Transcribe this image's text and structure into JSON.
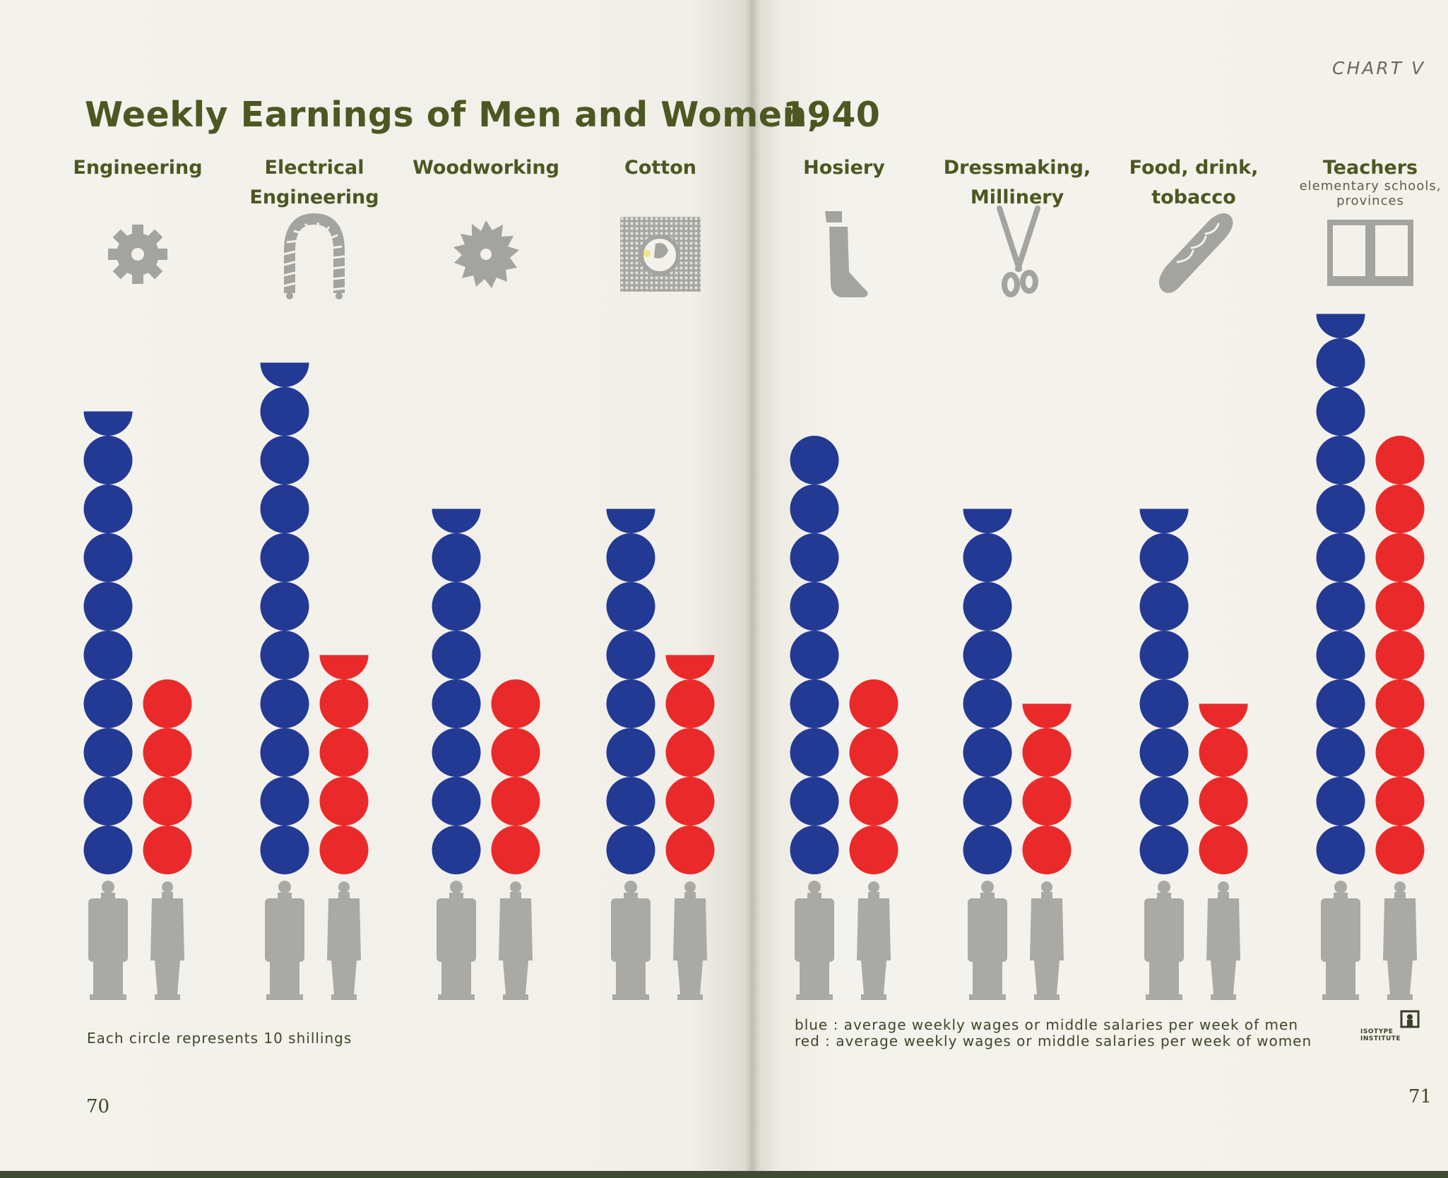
{
  "title_left": "Weekly Earnings of Men and Women,",
  "title_right": "1940",
  "chart_label": "CHART V",
  "chart_data": {
    "type": "bar",
    "title": "Weekly Earnings of Men and Women, 1940",
    "unit": "Each circle represents 10 shillings",
    "categories": [
      "Engineering",
      "Electrical Engineering",
      "Woodworking",
      "Cotton",
      "Hosiery",
      "Dressmaking, Millinery",
      "Food, drink, tobacco",
      "Teachers"
    ],
    "category_sub": [
      "",
      "",
      "",
      "",
      "",
      "",
      "",
      "elementary schools, provinces"
    ],
    "series": [
      {
        "color": "#233a94",
        "values": [
          9.5,
          10.5,
          7.5,
          7.5,
          9,
          7.5,
          7.5,
          11.5
        ]
      },
      {
        "color": "#ea2a2a",
        "values": [
          4,
          4.5,
          4,
          4.5,
          4,
          3.5,
          3.5,
          9
        ]
      }
    ]
  },
  "legend": {
    "blue": "blue : average weekly wages or middle salaries per week of men",
    "red": "red : average weekly wages or middle salaries per week of women"
  },
  "footnote": "Each circle represents 10 shillings",
  "page_left": "70",
  "page_right": "71",
  "icons": [
    "gear-icon",
    "wire-coil-icon",
    "saw-blade-icon",
    "cotton-boll-icon",
    "stocking-icon",
    "scissors-icon",
    "bread-icon",
    "open-book-icon"
  ],
  "figure_color": "#a9a9a6",
  "publisher_logo_text": "ISOTYPE INSTITUTE"
}
